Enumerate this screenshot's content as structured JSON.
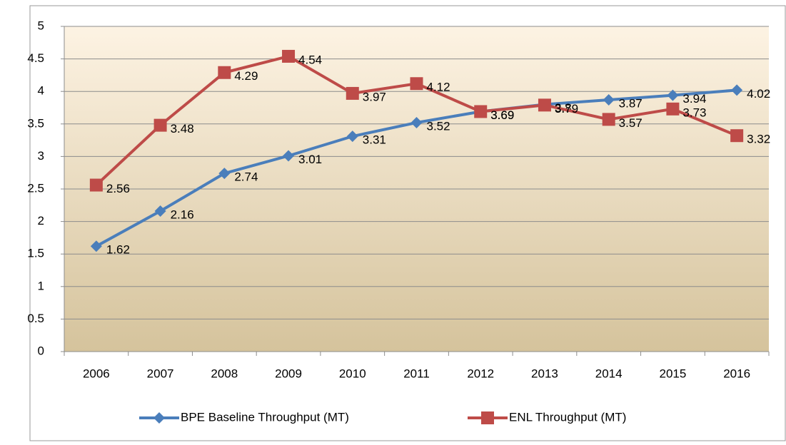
{
  "chart_data": {
    "type": "line",
    "categories": [
      "2006",
      "2007",
      "2008",
      "2009",
      "2010",
      "2011",
      "2012",
      "2013",
      "2014",
      "2015",
      "2016"
    ],
    "series": [
      {
        "name": "BPE Baseline Throughput (MT)",
        "color": "#4a7ebb",
        "marker": "diamond",
        "values": [
          1.62,
          2.16,
          2.74,
          3.01,
          3.31,
          3.52,
          3.69,
          3.8,
          3.87,
          3.94,
          4.02
        ]
      },
      {
        "name": "ENL Throughput (MT)",
        "color": "#be4b48",
        "marker": "square",
        "values": [
          2.56,
          3.48,
          4.29,
          4.54,
          3.97,
          4.12,
          3.69,
          3.79,
          3.57,
          3.73,
          3.32
        ]
      }
    ],
    "ylim": [
      0,
      5
    ],
    "yticks": [
      0,
      0.5,
      1,
      1.5,
      2,
      2.5,
      3,
      3.5,
      4,
      4.5,
      5
    ],
    "grid": true,
    "legend": "bottom"
  }
}
